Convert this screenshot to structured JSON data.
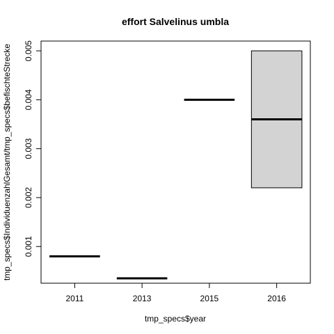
{
  "chart_data": {
    "type": "boxplot",
    "title": "effort Salvelinus umbla",
    "xlabel": "tmp_specs$year",
    "ylabel": "tmp_specs$IndividuenzahlGesamt/tmp_specs$befischteStrecke",
    "categories": [
      "2011",
      "2013",
      "2015",
      "2016"
    ],
    "boxes": [
      {
        "category": "2011",
        "q1": 0.0008,
        "median": 0.0008,
        "q3": 0.0008
      },
      {
        "category": "2013",
        "q1": 0.00035,
        "median": 0.00035,
        "q3": 0.00035
      },
      {
        "category": "2015",
        "q1": 0.004,
        "median": 0.004,
        "q3": 0.004
      },
      {
        "category": "2016",
        "q1": 0.0022,
        "median": 0.0036,
        "q3": 0.005
      }
    ],
    "ylim": [
      0.00025,
      0.0052
    ],
    "yticks": [
      0.001,
      0.002,
      0.003,
      0.004,
      0.005
    ],
    "ytick_labels": [
      "0.001",
      "0.002",
      "0.003",
      "0.004",
      "0.005"
    ],
    "box_fill": "#d3d3d3",
    "grid": false
  }
}
